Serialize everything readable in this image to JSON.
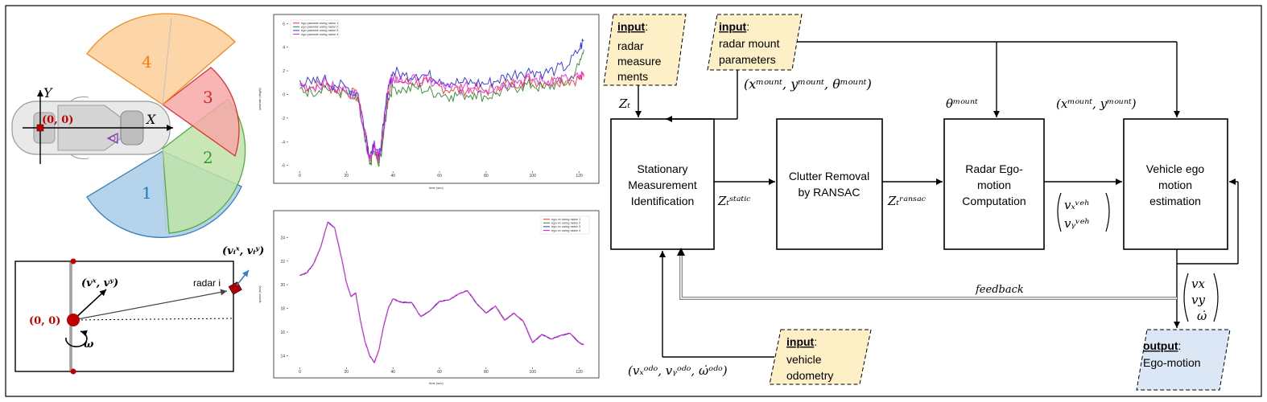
{
  "radar_fig": {
    "sectors": [
      {
        "label": "1",
        "color": "#1f77b4",
        "fill": "#a8cbe6",
        "stroke": "#3a7fb6"
      },
      {
        "label": "2",
        "color": "#2ca02c",
        "fill": "#bfe3a9",
        "stroke": "#4fae3d"
      },
      {
        "label": "3",
        "color": "#d62728",
        "fill": "#f6a8a8",
        "stroke": "#e03030"
      },
      {
        "label": "4",
        "color": "#ff7f0e",
        "fill": "#fbcf9a",
        "stroke": "#f08a1e"
      }
    ],
    "axis_y": "Y",
    "axis_x": "X",
    "origin": "(0, 0)"
  },
  "kin_fig": {
    "vel_vehicle": "(vˣ, vʸ)",
    "vel_radar": "(vᵢˣ, vᵢʸ)",
    "radar_label": "radar i",
    "origin": "(0, 0)",
    "omega": "ω"
  },
  "chart_data": [
    {
      "type": "line",
      "title": "",
      "xlabel": "time (sec)",
      "ylabel": "yawrate (deg/s)",
      "xlim": [
        -5,
        125
      ],
      "ylim": [
        -6.5,
        6.5
      ],
      "xticks": [
        0,
        20,
        40,
        60,
        80,
        100,
        120
      ],
      "yticks": [
        -6,
        -4,
        -2,
        0,
        2,
        4,
        6
      ],
      "legend": "top-left",
      "x": [
        0,
        5,
        10,
        15,
        20,
        25,
        28,
        30,
        32,
        34,
        36,
        38,
        40,
        45,
        50,
        55,
        60,
        65,
        70,
        75,
        80,
        85,
        90,
        95,
        100,
        105,
        110,
        115,
        120,
        122
      ],
      "series": [
        {
          "name": "ego yawrate using radar 1",
          "color": "#ff3333",
          "values": [
            0.8,
            0.6,
            0.9,
            0.4,
            0.3,
            -0.2,
            -3.5,
            -5.6,
            -4.2,
            -5.8,
            -3.0,
            0.3,
            1.3,
            1.0,
            1.1,
            1.0,
            0.7,
            0.4,
            0.4,
            0.5,
            0.3,
            0.6,
            0.9,
            1.1,
            1.2,
            1.0,
            1.2,
            1.2,
            1.3,
            1.5
          ]
        },
        {
          "name": "ego yawrate using radar 2",
          "color": "#2a8a2a",
          "values": [
            0.5,
            0.2,
            0.7,
            0.2,
            0.1,
            -0.6,
            -4.0,
            -5.9,
            -4.8,
            -6.1,
            -3.5,
            -0.3,
            0.6,
            0.4,
            0.6,
            0.3,
            0.1,
            -0.1,
            0.0,
            0.1,
            -0.2,
            0.1,
            0.5,
            0.7,
            0.8,
            0.5,
            0.9,
            1.0,
            2.5,
            3.8
          ]
        },
        {
          "name": "ego yawrate using radar 3",
          "color": "#2a2aff",
          "values": [
            1.2,
            0.9,
            1.3,
            0.8,
            0.6,
            0.1,
            -3.0,
            -5.2,
            -3.9,
            -5.4,
            -2.6,
            0.8,
            1.9,
            1.6,
            1.7,
            1.6,
            1.3,
            1.0,
            1.0,
            1.0,
            0.9,
            1.2,
            1.6,
            1.9,
            2.0,
            1.8,
            2.1,
            2.4,
            3.8,
            4.6
          ]
        },
        {
          "name": "ego yawrate using radar 4",
          "color": "#ee22ee",
          "values": [
            0.9,
            0.6,
            1.0,
            0.5,
            0.4,
            -0.1,
            -3.4,
            -5.5,
            -4.1,
            -5.7,
            -2.9,
            0.4,
            1.4,
            1.1,
            1.2,
            1.1,
            0.8,
            0.5,
            0.5,
            0.6,
            0.4,
            0.7,
            1.0,
            1.2,
            1.3,
            1.1,
            1.3,
            1.3,
            1.4,
            1.6
          ]
        }
      ]
    },
    {
      "type": "line",
      "title": "",
      "xlabel": "time (sec)",
      "ylabel": "speed (m/s)",
      "xlim": [
        -5,
        125
      ],
      "ylim": [
        13,
        26
      ],
      "xticks": [
        0,
        20,
        40,
        60,
        80,
        100,
        120
      ],
      "yticks": [
        14,
        16,
        18,
        20,
        22,
        24
      ],
      "legend": "top-right",
      "x": [
        0,
        3,
        6,
        9,
        12,
        15,
        18,
        20,
        22,
        24,
        26,
        28,
        30,
        32,
        34,
        36,
        38,
        40,
        44,
        48,
        52,
        56,
        60,
        64,
        68,
        72,
        76,
        80,
        84,
        88,
        92,
        96,
        100,
        104,
        108,
        112,
        116,
        120,
        122
      ],
      "series": [
        {
          "name": "ego vx using radar 1",
          "color": "#ff3333",
          "values": [
            20.8,
            21.0,
            21.8,
            23.2,
            25.3,
            24.8,
            22.2,
            20.2,
            19.0,
            19.3,
            17.0,
            15.2,
            14.0,
            13.4,
            14.5,
            16.5,
            18.0,
            18.8,
            18.5,
            18.5,
            17.3,
            17.8,
            18.6,
            18.7,
            19.2,
            19.5,
            18.4,
            17.6,
            18.2,
            17.0,
            17.6,
            16.9,
            15.1,
            15.8,
            15.4,
            15.7,
            15.9,
            15.1,
            14.9
          ]
        },
        {
          "name": "ego vx using radar 2",
          "color": "#2a8a2a",
          "values": [
            20.8,
            21.0,
            21.8,
            23.2,
            25.3,
            24.8,
            22.2,
            20.2,
            19.0,
            19.3,
            17.0,
            15.2,
            14.0,
            13.4,
            14.5,
            16.5,
            18.0,
            18.8,
            18.5,
            18.5,
            17.3,
            17.8,
            18.6,
            18.7,
            19.2,
            19.5,
            18.4,
            17.6,
            18.2,
            17.0,
            17.6,
            16.9,
            15.1,
            15.8,
            15.4,
            15.7,
            15.9,
            15.1,
            14.9
          ]
        },
        {
          "name": "ego vx using radar 3",
          "color": "#2a2aff",
          "values": [
            20.8,
            21.0,
            21.8,
            23.2,
            25.3,
            24.8,
            22.2,
            20.2,
            19.0,
            19.3,
            17.0,
            15.2,
            14.0,
            13.4,
            14.5,
            16.5,
            18.0,
            18.8,
            18.5,
            18.5,
            17.3,
            17.8,
            18.6,
            18.7,
            19.2,
            19.5,
            18.4,
            17.6,
            18.2,
            17.0,
            17.6,
            16.9,
            15.1,
            15.8,
            15.4,
            15.7,
            15.9,
            15.1,
            14.9
          ]
        },
        {
          "name": "ego vx using radar 4",
          "color": "#ee22ee",
          "values": [
            20.8,
            21.0,
            21.8,
            23.2,
            25.3,
            24.8,
            22.2,
            20.2,
            19.0,
            19.3,
            17.0,
            15.2,
            14.0,
            13.4,
            14.5,
            16.5,
            18.0,
            18.8,
            18.5,
            18.5,
            17.3,
            17.8,
            18.6,
            18.7,
            19.2,
            19.5,
            18.4,
            17.6,
            18.2,
            17.0,
            17.6,
            16.9,
            15.1,
            15.8,
            15.4,
            15.7,
            15.9,
            15.1,
            14.9
          ]
        }
      ]
    }
  ],
  "flow": {
    "inputs": {
      "radar": {
        "keyword": "input",
        "lines": [
          "radar",
          "measure",
          "ments"
        ]
      },
      "mount": {
        "keyword": "input",
        "lines": [
          "radar mount",
          "parameters"
        ]
      },
      "odometry": {
        "keyword": "input",
        "lines": [
          "vehicle",
          "odometry"
        ]
      }
    },
    "output": {
      "keyword": "output",
      "lines": [
        "Ego-motion"
      ]
    },
    "blocks": [
      [
        "Stationary",
        "Measurement",
        "Identification"
      ],
      [
        "Clutter Removal",
        "by RANSAC"
      ],
      [
        "Radar Ego-",
        "motion",
        "Computation"
      ],
      [
        "Vehicle ego",
        "motion",
        "estimation"
      ]
    ],
    "labels": {
      "mount_params": "(xᵐᵒᵘⁿᵗ, yᵐᵒᵘⁿᵗ, θᵐᵒᵘⁿᵗ)",
      "theta_mount": "θᵐᵒᵘⁿᵗ",
      "xy_mount": "(xᵐᵒᵘⁿᵗ, yᵐᵒᵘⁿᵗ)",
      "zt": "Zₜ",
      "zt_static": "Zₜˢᵗᵃᵗⁱᶜ",
      "zt_ransac": "Zₜʳᵃⁿˢᵃᶜ",
      "v_veh_x": "vₓᵛᵉʰ",
      "v_veh_y": "vᵧᵛᵉʰ",
      "feedback": "feedback",
      "out_vector": [
        "vx",
        "vy",
        "ω̇"
      ],
      "odo": "(vₓᵒᵈᵒ, vᵧᵒᵈᵒ, ω̇ᵒᵈᵒ)"
    }
  }
}
